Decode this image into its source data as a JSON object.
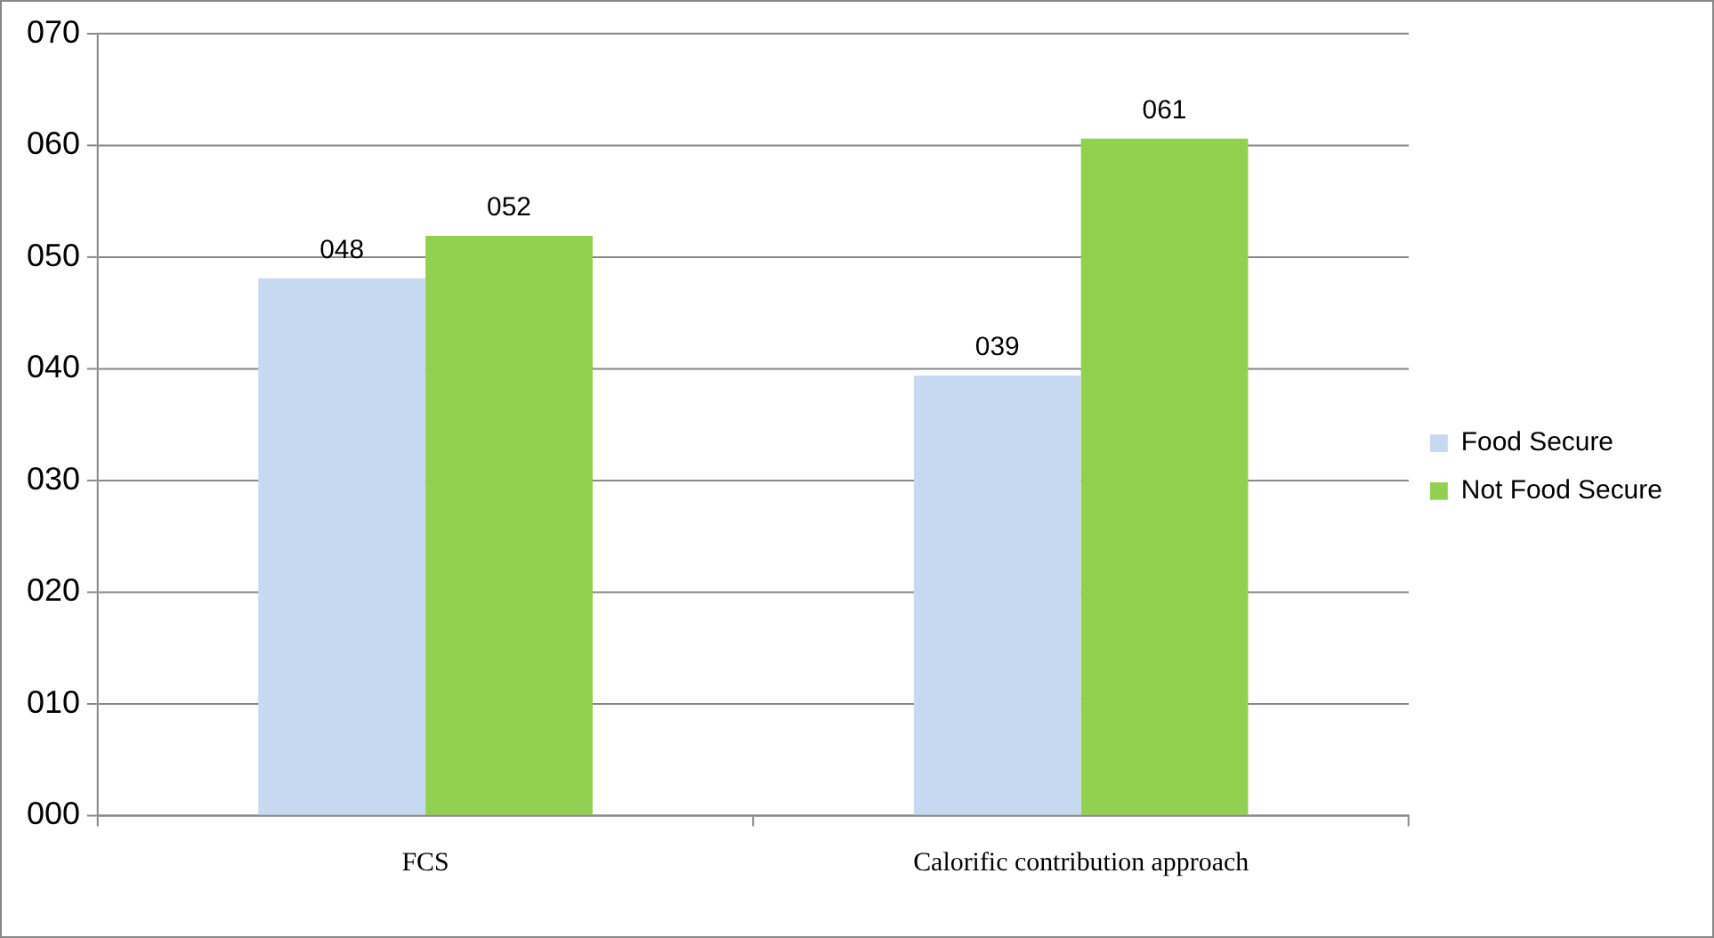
{
  "chart_data": {
    "type": "bar",
    "categories": [
      "FCS",
      "Calorific contribution approach"
    ],
    "series": [
      {
        "name": "Food Secure",
        "color": "#c6d9f1",
        "values": [
          48.1,
          39.4
        ],
        "value_labels": [
          "048",
          "039"
        ]
      },
      {
        "name": "Not Food Secure",
        "color": "#92d050",
        "values": [
          51.9,
          60.6
        ],
        "value_labels": [
          "052",
          "061"
        ]
      }
    ],
    "ylim": [
      0,
      70
    ],
    "yticks": [
      {
        "value": 0,
        "label": "000"
      },
      {
        "value": 10,
        "label": "010"
      },
      {
        "value": 20,
        "label": "020"
      },
      {
        "value": 30,
        "label": "030"
      },
      {
        "value": 40,
        "label": "040"
      },
      {
        "value": 50,
        "label": "050"
      },
      {
        "value": 60,
        "label": "060"
      },
      {
        "value": 70,
        "label": "070"
      }
    ],
    "grid": "y",
    "legend": "right"
  }
}
